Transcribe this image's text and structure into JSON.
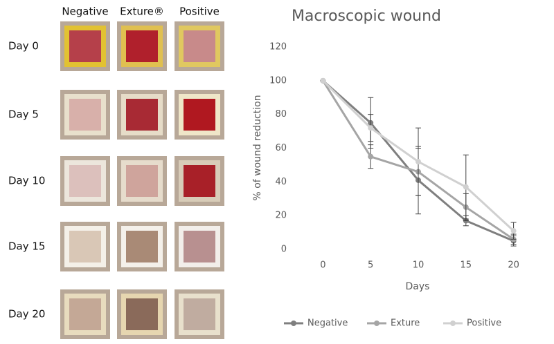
{
  "photo_grid": {
    "columns": [
      "Negative",
      "Exture®",
      "Positive"
    ],
    "rows": [
      "Day 0",
      "Day 5",
      "Day 10",
      "Day 15",
      "Day 20"
    ]
  },
  "chart_data": {
    "type": "line",
    "title": "Macroscopic wound",
    "x_label": "Days",
    "y_label": "% of wound reduction",
    "x": [
      0,
      5,
      10,
      15,
      20
    ],
    "series": [
      {
        "name": "Negative",
        "color": "#7f7f7f",
        "values": [
          100,
          75,
          41,
          17,
          5
        ],
        "errors": [
          0,
          15,
          20,
          3,
          3
        ]
      },
      {
        "name": "Exture",
        "color": "#a5a5a5",
        "values": [
          100,
          55,
          46,
          25,
          6
        ],
        "errors": [
          0,
          7,
          14,
          8,
          3
        ]
      },
      {
        "name": "Positive",
        "color": "#d0d0d0",
        "values": [
          100,
          72,
          52,
          37,
          11
        ],
        "errors": [
          0,
          8,
          20,
          19,
          5
        ]
      }
    ],
    "xlim": [
      -2.5,
      22.5
    ],
    "ylim": [
      0,
      120
    ],
    "xticks": [
      0,
      5,
      10,
      15,
      20
    ],
    "yticks": [
      0,
      20,
      40,
      60,
      80,
      100,
      120
    ],
    "grid": false,
    "legend": "bottom"
  }
}
